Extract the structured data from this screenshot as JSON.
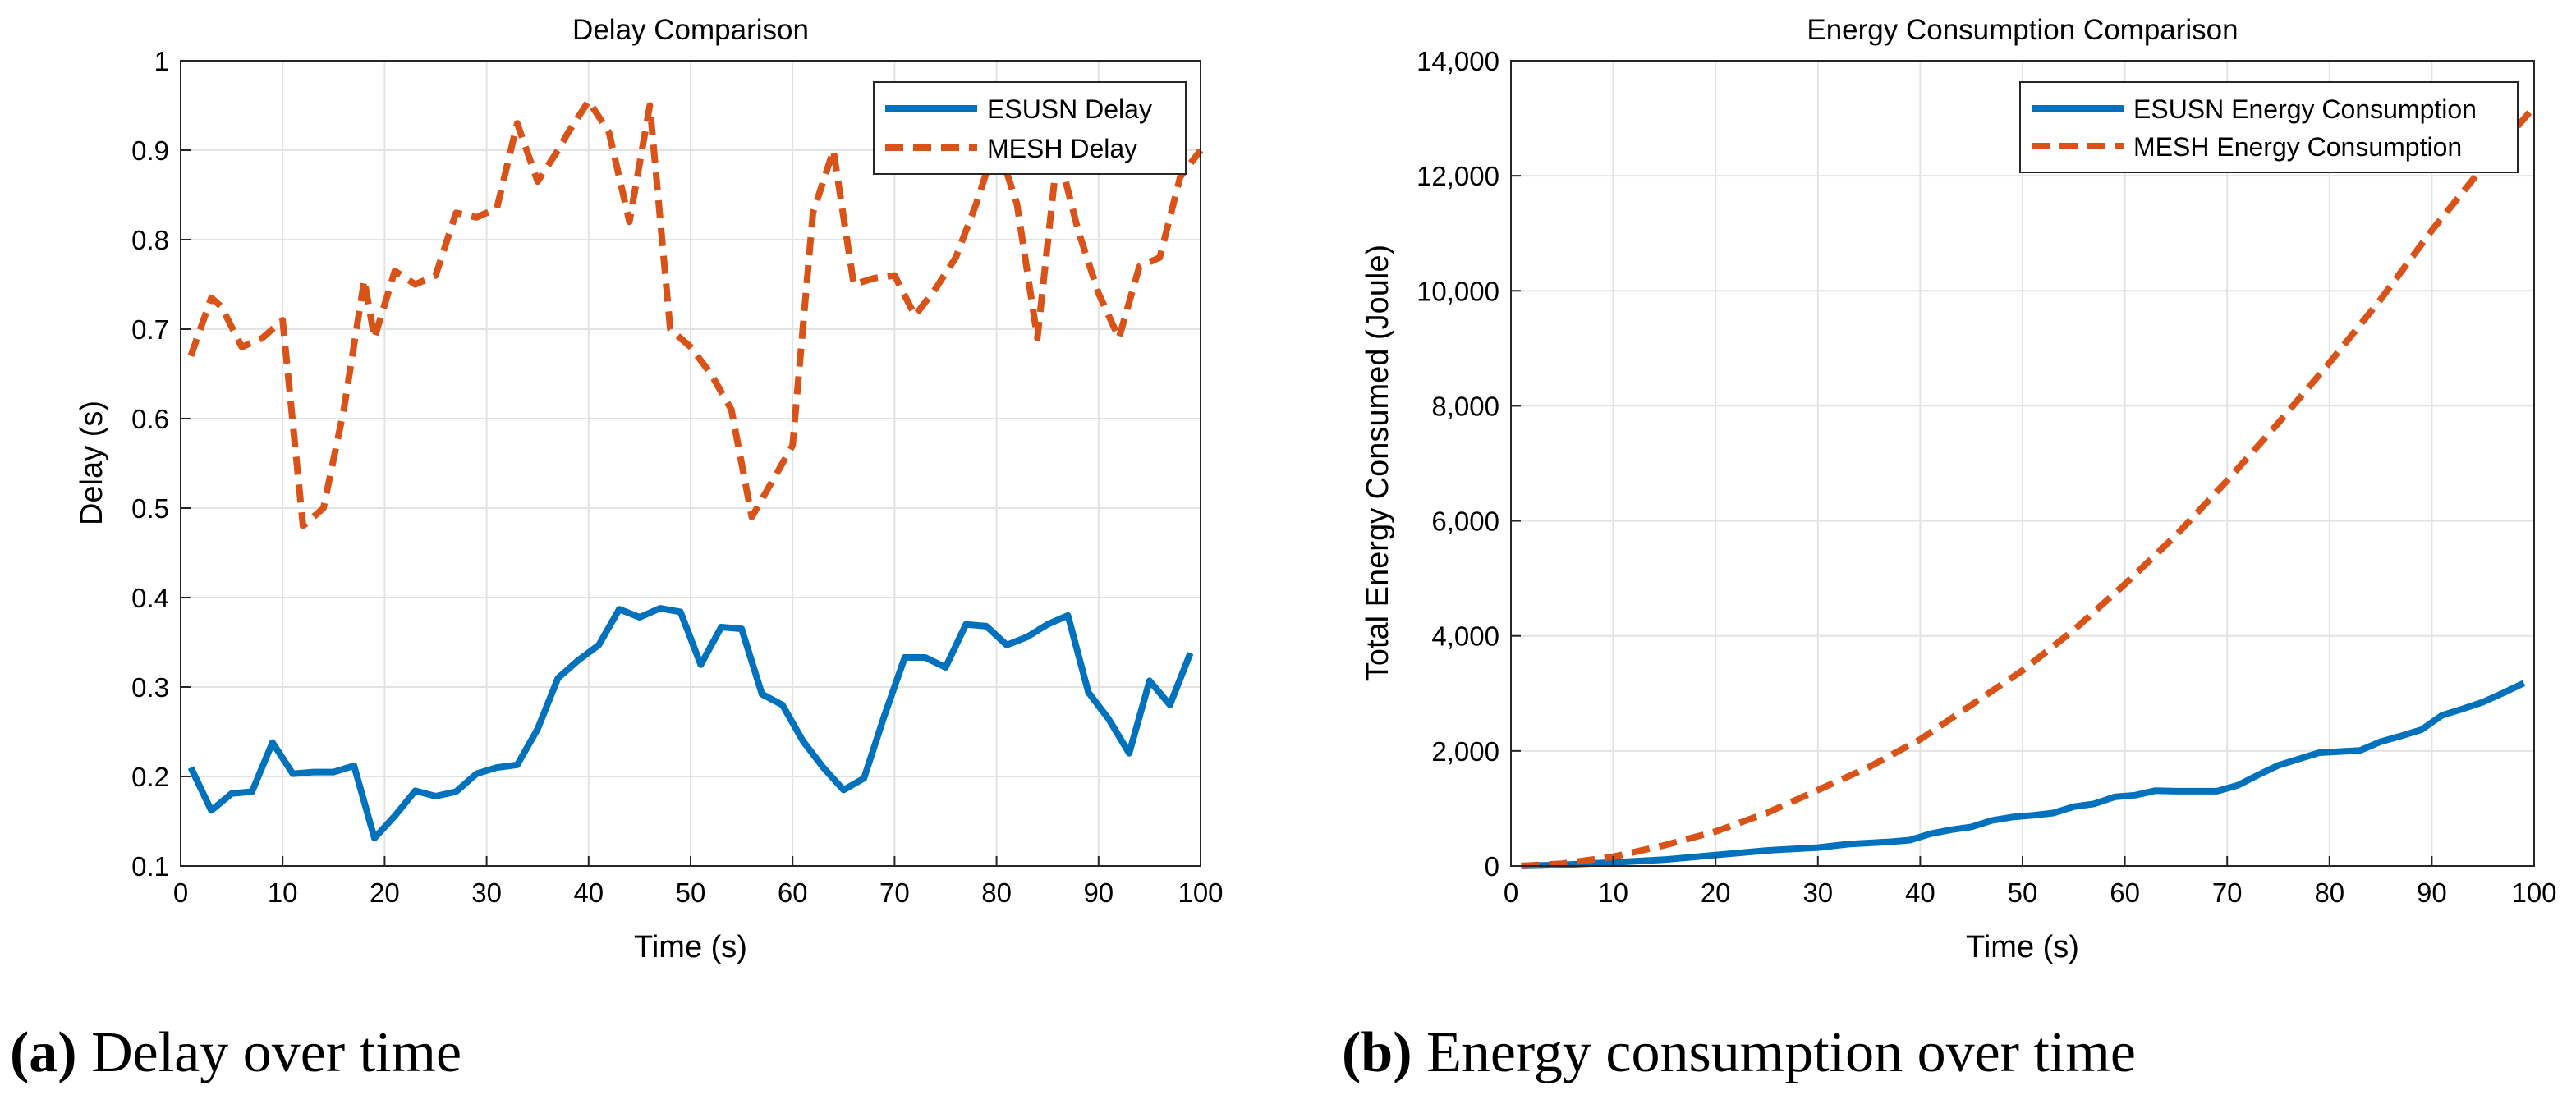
{
  "chart_data": [
    {
      "type": "line",
      "title": "Delay Comparison",
      "xlabel": "Time (s)",
      "ylabel": "Delay (s)",
      "xlim": [
        0,
        100
      ],
      "ylim": [
        0.1,
        1
      ],
      "xticks": [
        0,
        10,
        20,
        30,
        40,
        50,
        60,
        70,
        80,
        90,
        100
      ],
      "xtick_labels": [
        "0",
        "10",
        "20",
        "30",
        "40",
        "50",
        "60",
        "70",
        "80",
        "90",
        "100"
      ],
      "yticks": [
        0.1,
        0.2,
        0.3,
        0.4,
        0.5,
        0.6,
        0.7,
        0.8,
        0.9,
        1
      ],
      "ytick_labels": [
        "0.1",
        "0.2",
        "0.3",
        "0.4",
        "0.5",
        "0.6",
        "0.7",
        "0.8",
        "0.9",
        "1"
      ],
      "grid": true,
      "legend_position": "top-right",
      "series": [
        {
          "name": "ESUSN Delay",
          "color": "#0072BD",
          "style": "solid",
          "x": [
            1,
            3,
            5,
            7,
            9,
            11,
            13,
            15,
            17,
            19,
            21,
            23,
            25,
            27,
            29,
            31,
            33,
            35,
            37,
            39,
            41,
            43,
            45,
            47,
            49,
            51,
            53,
            55,
            57,
            59,
            61,
            63,
            65,
            67,
            69,
            71,
            73,
            75,
            77,
            79,
            81,
            83,
            85,
            87,
            89,
            91,
            93,
            95,
            97,
            99
          ],
          "y": [
            0.21,
            0.162,
            0.181,
            0.183,
            0.238,
            0.203,
            0.205,
            0.205,
            0.212,
            0.131,
            0.156,
            0.184,
            0.178,
            0.183,
            0.203,
            0.21,
            0.213,
            0.253,
            0.31,
            0.33,
            0.347,
            0.387,
            0.378,
            0.388,
            0.384,
            0.325,
            0.367,
            0.365,
            0.292,
            0.28,
            0.24,
            0.21,
            0.185,
            0.198,
            0.268,
            0.333,
            0.333,
            0.322,
            0.37,
            0.368,
            0.347,
            0.356,
            0.37,
            0.38,
            0.294,
            0.264,
            0.226,
            0.307,
            0.28,
            0.338
          ]
        },
        {
          "name": "MESH Delay",
          "color": "#D95319",
          "style": "dashed",
          "x": [
            1,
            3,
            4,
            6,
            8,
            10,
            12,
            14,
            16,
            18,
            19,
            21,
            23,
            25,
            27,
            29,
            31,
            33,
            35,
            37,
            38,
            40,
            42,
            44,
            46,
            48,
            50,
            52,
            54,
            56,
            58,
            60,
            62,
            64,
            66,
            68,
            70,
            72,
            74,
            76,
            78,
            80,
            82,
            84,
            86,
            88,
            90,
            92,
            94,
            96,
            98,
            100
          ],
          "y": [
            0.67,
            0.735,
            0.725,
            0.68,
            0.69,
            0.71,
            0.48,
            0.5,
            0.61,
            0.755,
            0.69,
            0.765,
            0.75,
            0.76,
            0.83,
            0.825,
            0.835,
            0.93,
            0.865,
            0.9,
            0.92,
            0.955,
            0.92,
            0.82,
            0.95,
            0.7,
            0.68,
            0.65,
            0.61,
            0.49,
            0.53,
            0.57,
            0.83,
            0.9,
            0.75,
            0.757,
            0.76,
            0.715,
            0.745,
            0.78,
            0.84,
            0.91,
            0.84,
            0.69,
            0.9,
            0.81,
            0.74,
            0.69,
            0.77,
            0.78,
            0.87,
            0.9
          ]
        }
      ]
    },
    {
      "type": "line",
      "title": "Energy Consumption Comparison",
      "xlabel": "Time (s)",
      "ylabel": "Total Energy Consumed (Joule)",
      "xlim": [
        0,
        100
      ],
      "ylim": [
        0,
        14000
      ],
      "xticks": [
        0,
        10,
        20,
        30,
        40,
        50,
        60,
        70,
        80,
        90,
        100
      ],
      "xtick_labels": [
        "0",
        "10",
        "20",
        "30",
        "40",
        "50",
        "60",
        "70",
        "80",
        "90",
        "100"
      ],
      "yticks": [
        0,
        2000,
        4000,
        6000,
        8000,
        10000,
        12000,
        14000
      ],
      "ytick_labels": [
        "0",
        "2,000",
        "4,000",
        "6,000",
        "8,000",
        "10,000",
        "12,000",
        "14,000"
      ],
      "grid": true,
      "legend_position": "top-right",
      "series": [
        {
          "name": "ESUSN Energy Consumption",
          "color": "#0072BD",
          "style": "solid",
          "x": [
            1,
            5,
            10,
            15,
            20,
            25,
            30,
            33,
            37,
            39,
            41,
            43,
            45,
            47,
            49,
            51,
            53,
            55,
            57,
            59,
            61,
            63,
            65,
            67,
            69,
            71,
            73,
            75,
            77,
            79,
            81,
            83,
            85,
            87,
            89,
            91,
            93,
            95,
            97,
            99
          ],
          "y": [
            0,
            20,
            60,
            110,
            190,
            270,
            320,
            380,
            420,
            450,
            560,
            630,
            680,
            790,
            850,
            880,
            920,
            1030,
            1080,
            1200,
            1230,
            1310,
            1300,
            1300,
            1300,
            1400,
            1580,
            1750,
            1860,
            1970,
            1990,
            2010,
            2160,
            2260,
            2370,
            2620,
            2730,
            2850,
            3010,
            3180
          ]
        },
        {
          "name": "MESH Energy Consumption",
          "color": "#D95319",
          "style": "dashed",
          "x": [
            1,
            5,
            10,
            15,
            20,
            25,
            30,
            35,
            40,
            45,
            50,
            55,
            60,
            65,
            70,
            75,
            80,
            85,
            90,
            95,
            100
          ],
          "y": [
            0,
            40,
            160,
            360,
            600,
            920,
            1320,
            1720,
            2200,
            2800,
            3400,
            4100,
            4900,
            5750,
            6700,
            7700,
            8750,
            9850,
            11050,
            12150,
            13200
          ]
        }
      ]
    }
  ],
  "captions": [
    {
      "label": "(a)",
      "text": " Delay over time"
    },
    {
      "label": "(b)",
      "text": " Energy consumption over time"
    }
  ]
}
